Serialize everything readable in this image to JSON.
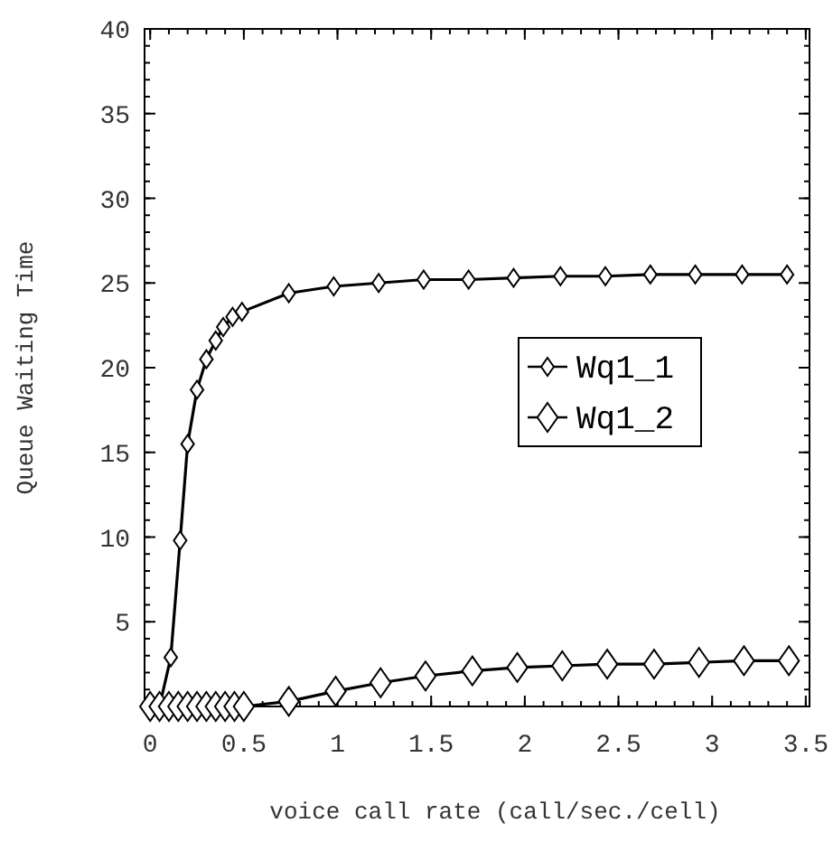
{
  "chart_data": {
    "type": "line",
    "xlabel": "voice call rate (call/sec./cell)",
    "ylabel": "Queue Waiting Time",
    "xlim": [
      -0.03,
      3.52
    ],
    "ylim": [
      0,
      40
    ],
    "xticks": [
      0,
      0.5,
      1,
      1.5,
      2,
      2.5,
      3,
      3.5
    ],
    "yticks": [
      {
        "value": 0,
        "label": null
      },
      5,
      10,
      15,
      20,
      25,
      30,
      35,
      40
    ],
    "marker": "diamond",
    "line_style": "solid",
    "legend": "right",
    "grid": false,
    "series": [
      {
        "name": "Wq1_1",
        "color": "#000000",
        "x": [
          0.02,
          0.05,
          0.11,
          0.16,
          0.2,
          0.25,
          0.3,
          0.35,
          0.39,
          0.44,
          0.49,
          0.74,
          0.98,
          1.22,
          1.46,
          1.7,
          1.94,
          2.19,
          2.43,
          2.67,
          2.91,
          3.16,
          3.4
        ],
        "values": [
          0,
          0,
          2.9,
          9.8,
          15.5,
          18.7,
          20.5,
          21.6,
          22.4,
          23.0,
          23.3,
          24.4,
          24.8,
          25.0,
          25.2,
          25.2,
          25.3,
          25.4,
          25.4,
          25.5,
          25.5,
          25.5,
          25.5
        ]
      },
      {
        "name": "Wq1_2",
        "color": "#000000",
        "x": [
          0,
          0.05,
          0.1,
          0.15,
          0.2,
          0.25,
          0.3,
          0.35,
          0.4,
          0.45,
          0.5,
          0.74,
          0.99,
          1.23,
          1.47,
          1.72,
          1.96,
          2.2,
          2.44,
          2.69,
          2.93,
          3.17,
          3.41
        ],
        "values": [
          0,
          0,
          0,
          0,
          0,
          0,
          0,
          0,
          0,
          0,
          0,
          0.3,
          0.9,
          1.4,
          1.8,
          2.1,
          2.3,
          2.4,
          2.5,
          2.5,
          2.6,
          2.7,
          2.7
        ]
      }
    ]
  }
}
